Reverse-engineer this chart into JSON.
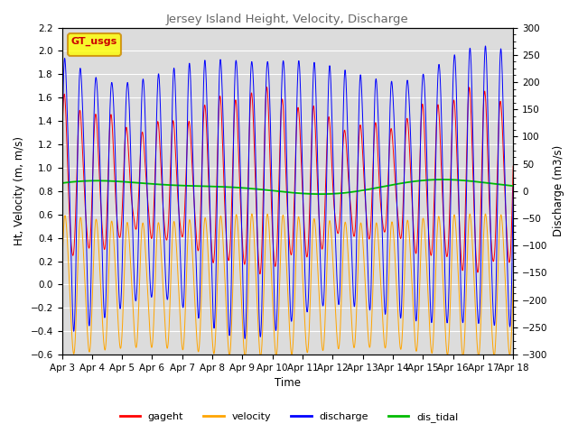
{
  "title": "Jersey Island Height, Velocity, Discharge",
  "xlabel": "Time",
  "ylabel_left": "Ht, Velocity (m, m/s)",
  "ylabel_right": "Discharge (m3/s)",
  "ylim_left": [
    -0.6,
    2.2
  ],
  "ylim_right": [
    -300,
    300
  ],
  "yticks_left": [
    -0.6,
    -0.4,
    -0.2,
    0.0,
    0.2,
    0.4,
    0.6,
    0.8,
    1.0,
    1.2,
    1.4,
    1.6,
    1.8,
    2.0,
    2.2
  ],
  "yticks_right": [
    -300,
    -250,
    -200,
    -150,
    -100,
    -50,
    0,
    50,
    100,
    150,
    200,
    250,
    300
  ],
  "xtick_labels": [
    "Apr 3",
    "Apr 4",
    "Apr 5",
    "Apr 6",
    "Apr 7",
    "Apr 8",
    "Apr 9",
    "Apr 10",
    "Apr 11",
    "Apr 12",
    "Apr 13",
    "Apr 14",
    "Apr 15",
    "Apr 16",
    "Apr 17",
    "Apr 18"
  ],
  "colors": {
    "gageht": "#ff0000",
    "velocity": "#ffa500",
    "discharge": "#0000ff",
    "dis_tidal": "#00bb00"
  },
  "legend_label": "GT_usgs",
  "legend_bg": "#ffff00",
  "legend_edge": "#cc8800",
  "plot_bg": "#dcdcdc",
  "fig_bg": "#ffffff",
  "title_color": "#666666",
  "tidal_period_hours": 12.42,
  "tidal_period2_hours": 6.21,
  "n_days": 15
}
